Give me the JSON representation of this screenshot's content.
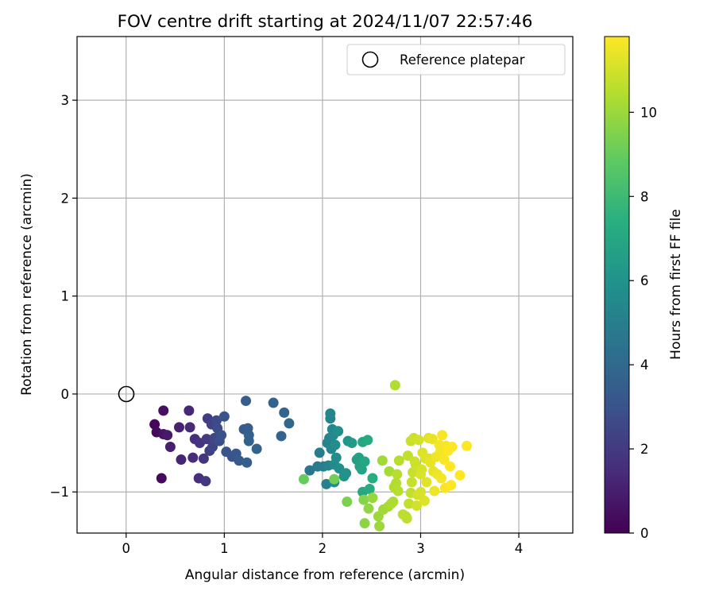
{
  "chart_data": {
    "type": "scatter",
    "title": "FOV centre drift starting at 2024/11/07 22:57:46",
    "xlabel": "Angular distance from reference (arcmin)",
    "ylabel": "Rotation from reference (arcmin)",
    "xlim": [
      -0.5,
      4.55
    ],
    "ylim": [
      -1.42,
      3.65
    ],
    "xticks": [
      "0",
      "1",
      "2",
      "3",
      "4"
    ],
    "yticks": [
      "−1",
      "0",
      "1",
      "2",
      "3"
    ],
    "grid": true,
    "legend": {
      "placement": "top-right",
      "entries": [
        "Reference platepar"
      ]
    },
    "reference_point": {
      "name": "Reference platepar",
      "x": 0,
      "y": 0
    },
    "colorbar": {
      "label": "Hours from first FF file",
      "colormap": "viridis",
      "range": [
        0,
        11.8
      ],
      "ticks": [
        "0",
        "2",
        "4",
        "6",
        "8",
        "10"
      ]
    },
    "series": [
      {
        "values_format": "[x, y, hours]",
        "points": [
          [
            0.29,
            -0.31,
            0.2
          ],
          [
            0.31,
            -0.39,
            0.3
          ],
          [
            0.36,
            -0.86,
            0.3
          ],
          [
            0.38,
            -0.17,
            0.5
          ],
          [
            0.38,
            -0.41,
            0.6
          ],
          [
            0.42,
            -0.42,
            0.8
          ],
          [
            0.45,
            -0.54,
            1.0
          ],
          [
            0.54,
            -0.34,
            1.1
          ],
          [
            0.56,
            -0.67,
            1.2
          ],
          [
            0.64,
            -0.17,
            1.3
          ],
          [
            0.65,
            -0.34,
            1.4
          ],
          [
            0.68,
            -0.65,
            1.5
          ],
          [
            0.7,
            -0.46,
            1.6
          ],
          [
            0.74,
            -0.86,
            1.6
          ],
          [
            0.75,
            -0.5,
            1.7
          ],
          [
            0.79,
            -0.66,
            1.8
          ],
          [
            0.81,
            -0.89,
            1.9
          ],
          [
            0.82,
            -0.46,
            2.0
          ],
          [
            0.83,
            -0.25,
            2.1
          ],
          [
            0.85,
            -0.58,
            2.2
          ],
          [
            0.87,
            -0.31,
            2.3
          ],
          [
            0.88,
            -0.54,
            2.4
          ],
          [
            0.9,
            -0.45,
            2.5
          ],
          [
            0.92,
            -0.27,
            2.6
          ],
          [
            0.93,
            -0.35,
            2.7
          ],
          [
            0.95,
            -0.48,
            2.8
          ],
          [
            0.97,
            -0.42,
            2.9
          ],
          [
            1.0,
            -0.23,
            3.0
          ],
          [
            1.02,
            -0.59,
            3.1
          ],
          [
            1.08,
            -0.64,
            3.1
          ],
          [
            1.12,
            -0.61,
            3.2
          ],
          [
            1.15,
            -0.68,
            3.3
          ],
          [
            1.2,
            -0.36,
            3.4
          ],
          [
            1.22,
            -0.07,
            3.5
          ],
          [
            1.23,
            -0.7,
            3.5
          ],
          [
            1.24,
            -0.35,
            3.5
          ],
          [
            1.25,
            -0.42,
            3.6
          ],
          [
            1.25,
            -0.48,
            3.6
          ],
          [
            1.33,
            -0.56,
            3.7
          ],
          [
            1.5,
            -0.09,
            3.7
          ],
          [
            1.58,
            -0.43,
            3.8
          ],
          [
            1.61,
            -0.19,
            3.8
          ],
          [
            1.66,
            -0.3,
            3.9
          ],
          [
            1.87,
            -0.78,
            4.6
          ],
          [
            1.95,
            -0.74,
            4.8
          ],
          [
            1.97,
            -0.6,
            4.9
          ],
          [
            2.01,
            -0.74,
            5.0
          ],
          [
            2.04,
            -0.92,
            5.1
          ],
          [
            2.05,
            -0.5,
            5.2
          ],
          [
            2.06,
            -0.73,
            5.2
          ],
          [
            2.07,
            -0.45,
            5.3
          ],
          [
            2.08,
            -0.25,
            5.3
          ],
          [
            2.08,
            -0.2,
            5.4
          ],
          [
            2.09,
            -0.56,
            5.4
          ],
          [
            2.1,
            -0.36,
            5.5
          ],
          [
            2.11,
            -0.42,
            5.5
          ],
          [
            2.12,
            -0.72,
            5.6
          ],
          [
            2.12,
            -0.9,
            5.6
          ],
          [
            2.13,
            -0.52,
            5.7
          ],
          [
            2.14,
            -0.65,
            5.7
          ],
          [
            2.16,
            -0.38,
            5.8
          ],
          [
            2.17,
            -0.76,
            5.8
          ],
          [
            2.22,
            -0.84,
            5.9
          ],
          [
            2.24,
            -0.81,
            6.0
          ],
          [
            2.26,
            -0.48,
            6.1
          ],
          [
            2.3,
            -0.5,
            6.3
          ],
          [
            2.35,
            -0.67,
            6.5
          ],
          [
            2.37,
            -0.65,
            6.6
          ],
          [
            2.38,
            -0.74,
            6.7
          ],
          [
            2.4,
            -0.77,
            6.8
          ],
          [
            2.41,
            -0.49,
            6.9
          ],
          [
            2.41,
            -1.0,
            7.0
          ],
          [
            2.43,
            -0.69,
            7.0
          ],
          [
            2.46,
            -0.47,
            7.1
          ],
          [
            2.48,
            -0.97,
            7.2
          ],
          [
            2.51,
            -0.86,
            7.3
          ],
          [
            1.81,
            -0.87,
            9.0
          ],
          [
            2.12,
            -0.87,
            9.2
          ],
          [
            2.25,
            -1.1,
            9.4
          ],
          [
            2.42,
            -1.08,
            9.6
          ],
          [
            2.43,
            -1.32,
            9.7
          ],
          [
            2.47,
            -1.17,
            9.8
          ],
          [
            2.51,
            -1.06,
            9.9
          ],
          [
            2.57,
            -1.25,
            10.0
          ],
          [
            2.58,
            -1.35,
            10.0
          ],
          [
            2.61,
            -0.68,
            10.1
          ],
          [
            2.62,
            -1.18,
            10.1
          ],
          [
            2.67,
            -1.15,
            10.2
          ],
          [
            2.68,
            -0.79,
            10.2
          ],
          [
            2.7,
            -1.12,
            10.3
          ],
          [
            2.72,
            -1.1,
            10.3
          ],
          [
            2.73,
            -0.95,
            10.4
          ],
          [
            2.74,
            0.09,
            10.4
          ],
          [
            2.75,
            -0.91,
            10.4
          ],
          [
            2.76,
            -0.82,
            10.5
          ],
          [
            2.77,
            -0.99,
            10.5
          ],
          [
            2.78,
            -0.68,
            10.5
          ],
          [
            2.82,
            -1.23,
            10.6
          ],
          [
            2.85,
            -1.25,
            10.6
          ],
          [
            2.86,
            -1.27,
            10.6
          ],
          [
            2.87,
            -0.63,
            10.7
          ],
          [
            2.88,
            -1.12,
            10.7
          ],
          [
            2.9,
            -1.01,
            10.7
          ],
          [
            2.9,
            -0.48,
            10.8
          ],
          [
            2.91,
            -0.9,
            10.8
          ],
          [
            2.92,
            -0.8,
            10.8
          ],
          [
            2.93,
            -0.45,
            10.9
          ],
          [
            2.94,
            -0.69,
            10.9
          ],
          [
            2.95,
            -0.72,
            10.9
          ],
          [
            2.96,
            -1.14,
            11.0
          ],
          [
            2.97,
            -1.03,
            11.0
          ],
          [
            2.98,
            -0.47,
            11.0
          ],
          [
            3.0,
            -1.0,
            11.1
          ],
          [
            3.0,
            -0.82,
            11.1
          ],
          [
            3.01,
            -0.77,
            11.1
          ],
          [
            3.02,
            -0.6,
            11.2
          ],
          [
            3.04,
            -1.09,
            11.2
          ],
          [
            3.05,
            -0.66,
            11.2
          ],
          [
            3.06,
            -0.9,
            11.3
          ],
          [
            3.08,
            -0.45,
            11.3
          ],
          [
            3.09,
            -0.66,
            11.3
          ],
          [
            3.1,
            -0.7,
            11.4
          ],
          [
            3.12,
            -0.46,
            11.4
          ],
          [
            3.13,
            -0.79,
            11.4
          ],
          [
            3.14,
            -0.99,
            11.5
          ],
          [
            3.16,
            -0.64,
            11.5
          ],
          [
            3.17,
            -0.82,
            11.5
          ],
          [
            3.19,
            -0.52,
            11.6
          ],
          [
            3.2,
            -0.59,
            11.6
          ],
          [
            3.21,
            -0.86,
            11.6
          ],
          [
            3.22,
            -0.42,
            11.7
          ],
          [
            3.24,
            -0.67,
            11.7
          ],
          [
            3.25,
            -0.96,
            11.7
          ],
          [
            3.26,
            -0.53,
            11.7
          ],
          [
            3.28,
            -0.58,
            11.8
          ],
          [
            3.3,
            -0.74,
            11.8
          ],
          [
            3.31,
            -0.93,
            11.8
          ],
          [
            3.32,
            -0.54,
            11.8
          ],
          [
            3.4,
            -0.83,
            11.8
          ],
          [
            3.47,
            -0.53,
            11.8
          ]
        ]
      }
    ]
  }
}
